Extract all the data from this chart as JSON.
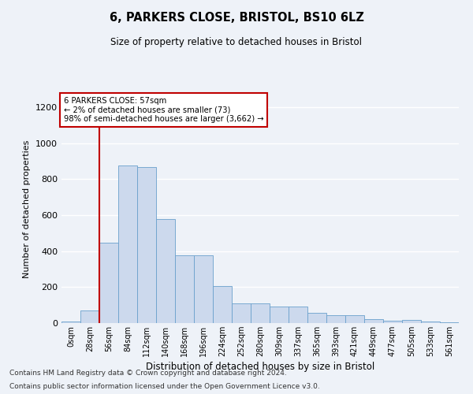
{
  "title1": "6, PARKERS CLOSE, BRISTOL, BS10 6LZ",
  "title2": "Size of property relative to detached houses in Bristol",
  "xlabel": "Distribution of detached houses by size in Bristol",
  "ylabel": "Number of detached properties",
  "bar_color": "#ccd9ed",
  "bar_edge_color": "#6aa0cc",
  "vline_color": "#c00000",
  "vline_x": 2,
  "annotation_box": {
    "text": "6 PARKERS CLOSE: 57sqm\n← 2% of detached houses are smaller (73)\n98% of semi-detached houses are larger (3,662) →",
    "box_color": "white",
    "edge_color": "#c00000"
  },
  "bin_labels": [
    "0sqm",
    "28sqm",
    "56sqm",
    "84sqm",
    "112sqm",
    "140sqm",
    "168sqm",
    "196sqm",
    "224sqm",
    "252sqm",
    "280sqm",
    "309sqm",
    "337sqm",
    "365sqm",
    "393sqm",
    "421sqm",
    "449sqm",
    "477sqm",
    "505sqm",
    "533sqm",
    "561sqm"
  ],
  "bar_heights": [
    10,
    70,
    445,
    878,
    868,
    578,
    375,
    375,
    205,
    110,
    110,
    90,
    90,
    55,
    42,
    42,
    22,
    15,
    18,
    8,
    5
  ],
  "ylim": [
    0,
    1270
  ],
  "yticks": [
    0,
    200,
    400,
    600,
    800,
    1000,
    1200
  ],
  "footnote1": "Contains HM Land Registry data © Crown copyright and database right 2024.",
  "footnote2": "Contains public sector information licensed under the Open Government Licence v3.0.",
  "background_color": "#eef2f8",
  "plot_bg_color": "#eef2f8",
  "grid_color": "#ffffff"
}
